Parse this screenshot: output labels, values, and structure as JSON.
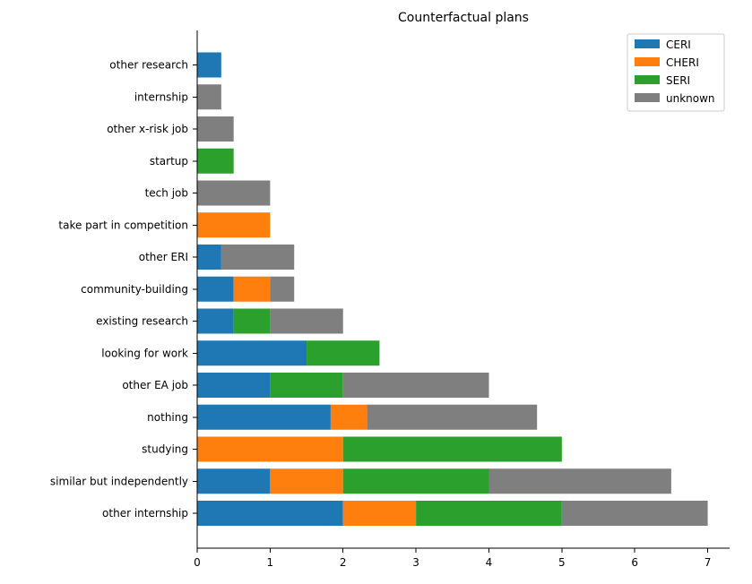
{
  "chart_data": {
    "type": "bar",
    "orientation": "horizontal",
    "stacked": true,
    "title": "Counterfactual plans",
    "xlabel": "",
    "ylabel": "",
    "xlim": [
      0,
      7.3
    ],
    "xticks": [
      0,
      1,
      2,
      3,
      4,
      5,
      6,
      7
    ],
    "grid": false,
    "legend_placement": "top-right",
    "categories": [
      "other internship",
      "similar but independently",
      "studying",
      "nothing",
      "other EA job",
      "looking for work",
      "existing research",
      "community-building",
      "other ERI",
      "take part in competition",
      "tech job",
      "startup",
      "other x-risk job",
      "internship",
      "other research"
    ],
    "series": [
      {
        "name": "CERI",
        "color": "#1f77b4",
        "values": [
          2,
          1,
          0,
          1.83,
          1,
          1.5,
          0.5,
          0.5,
          0.33,
          0,
          0,
          0,
          0,
          0,
          0.33
        ]
      },
      {
        "name": "CHERI",
        "color": "#ff7f0e",
        "values": [
          1,
          1,
          2,
          0.5,
          0,
          0,
          0,
          0.5,
          0,
          1,
          0,
          0,
          0,
          0,
          0
        ]
      },
      {
        "name": "SERI",
        "color": "#2ca02c",
        "values": [
          2,
          2,
          3,
          0,
          1,
          1,
          0.5,
          0,
          0,
          0,
          0,
          0.5,
          0,
          0,
          0
        ]
      },
      {
        "name": "unknown",
        "color": "#7f7f7f",
        "values": [
          2,
          2.5,
          0,
          2.33,
          2,
          0,
          1,
          0.33,
          1,
          0,
          1,
          0,
          0.5,
          0.33,
          0
        ]
      }
    ]
  }
}
